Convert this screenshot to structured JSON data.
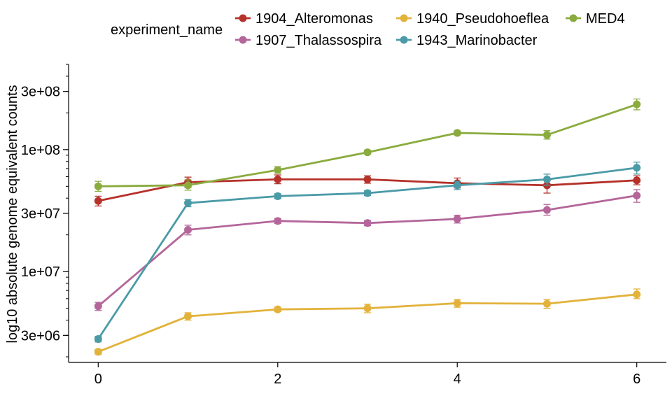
{
  "chart_data": {
    "type": "line",
    "xlabel": "",
    "ylabel": "log10 absolute genome equivalent counts",
    "y_scale": "log10",
    "ylim": [
      1800000,
      500000000
    ],
    "xlim": [
      -0.33,
      6.33
    ],
    "x_ticks": [
      0,
      2,
      4,
      6
    ],
    "x_tick_labels": [
      "0",
      "2",
      "4",
      "6"
    ],
    "y_ticks": [
      3000000,
      10000000,
      30000000,
      100000000,
      300000000
    ],
    "y_tick_labels": [
      "3e+06",
      "1e+07",
      "3e+07",
      "1e+08",
      "3e+08"
    ],
    "grid": false,
    "legend": {
      "title": "experiment_name",
      "position": "top"
    },
    "x": [
      0,
      1,
      2,
      3,
      4,
      5,
      6
    ],
    "series": [
      {
        "name": "1904_Alteromonas",
        "color": "#b5312a",
        "values": [
          38000000,
          54000000,
          57000000,
          57000000,
          53000000,
          51000000,
          56000000
        ],
        "err_low": [
          34500000,
          49000000,
          52500000,
          53000000,
          48500000,
          44000000,
          51500000
        ],
        "err_high": [
          41500000,
          59500000,
          62000000,
          61000000,
          58500000,
          57500000,
          61000000
        ]
      },
      {
        "name": "1907_Thalassospira",
        "color": "#b4669a",
        "values": [
          5200000,
          22000000,
          26000000,
          25000000,
          27000000,
          32000000,
          42000000
        ],
        "err_low": [
          4800000,
          20000000,
          24800000,
          23800000,
          25000000,
          29000000,
          37000000
        ],
        "err_high": [
          5600000,
          24000000,
          27200000,
          26200000,
          29000000,
          35500000,
          47000000
        ]
      },
      {
        "name": "1940_Pseudohoeflea",
        "color": "#e2b23b",
        "values": [
          2200000,
          4300000,
          4900000,
          5000000,
          5500000,
          5450000,
          6500000
        ],
        "err_low": [
          2100000,
          4000000,
          4700000,
          4600000,
          5100000,
          5000000,
          6000000
        ],
        "err_high": [
          2300000,
          4600000,
          5100000,
          5400000,
          5900000,
          5900000,
          7200000
        ]
      },
      {
        "name": "1943_Marinobacter",
        "color": "#4b9aa7",
        "values": [
          2800000,
          36500000,
          41500000,
          44000000,
          51000000,
          57000000,
          71000000
        ],
        "err_low": [
          2650000,
          34000000,
          39500000,
          42000000,
          47000000,
          51000000,
          63000000
        ],
        "err_high": [
          2950000,
          39000000,
          43500000,
          46000000,
          55000000,
          63000000,
          79000000
        ]
      },
      {
        "name": "MED4",
        "color": "#8aab3e",
        "values": [
          50000000,
          51000000,
          68000000,
          95000000,
          137000000,
          132000000,
          235000000
        ],
        "err_low": [
          45500000,
          46500000,
          64000000,
          92000000,
          132000000,
          122000000,
          212000000
        ],
        "err_high": [
          55000000,
          56500000,
          72500000,
          99000000,
          142000000,
          143000000,
          260000000
        ]
      }
    ]
  }
}
